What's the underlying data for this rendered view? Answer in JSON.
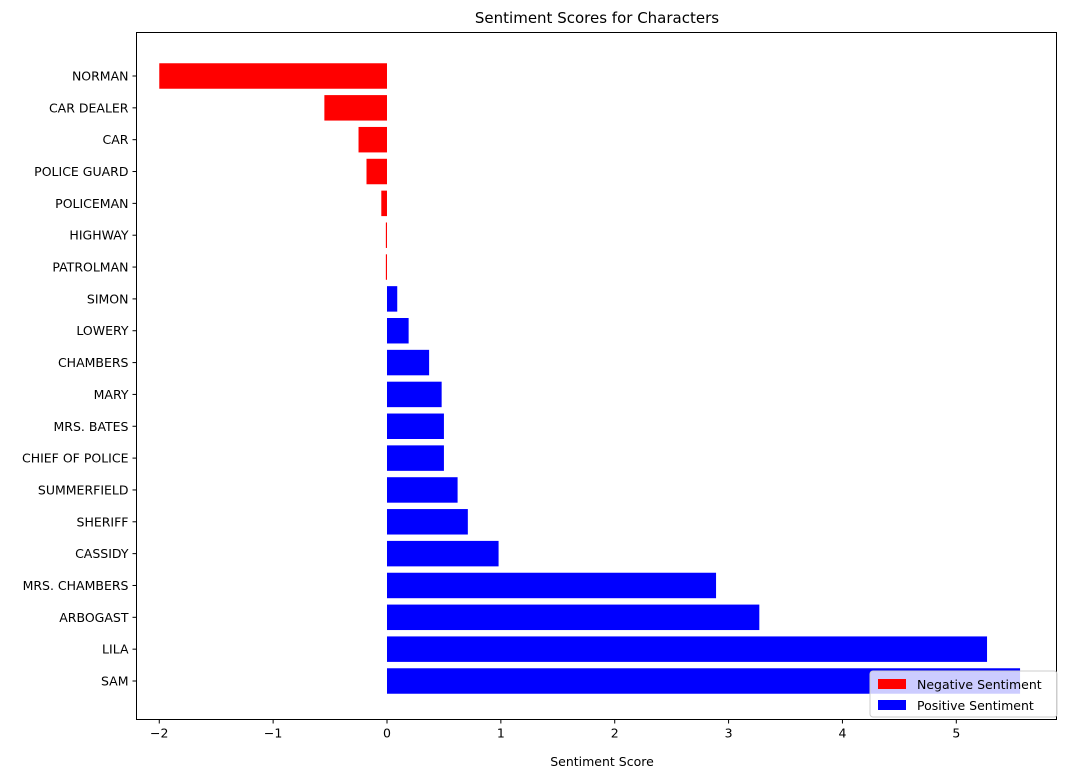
{
  "chart_data": {
    "type": "bar",
    "orientation": "horizontal",
    "title": "Sentiment Scores for Characters",
    "xlabel": "Sentiment Score",
    "ylabel": "",
    "xlim": [
      -2.2,
      5.88
    ],
    "xticks": [
      -2,
      -1,
      0,
      1,
      2,
      3,
      4,
      5
    ],
    "xtick_labels": [
      "−2",
      "−1",
      "0",
      "1",
      "2",
      "3",
      "4",
      "5"
    ],
    "grid": false,
    "legend_position": "bottom-right",
    "categories": [
      "NORMAN",
      "CAR DEALER",
      "CAR",
      "POLICE GUARD",
      "POLICEMAN",
      "HIGHWAY",
      "PATROLMAN",
      "SIMON",
      "LOWERY",
      "CHAMBERS",
      "MARY",
      "MRS. BATES",
      "CHIEF OF POLICE",
      "SUMMERFIELD",
      "SHERIFF",
      "CASSIDY",
      "MRS. CHAMBERS",
      "ARBOGAST",
      "LILA",
      "SAM"
    ],
    "values": [
      -2.0,
      -0.55,
      -0.25,
      -0.18,
      -0.05,
      -0.01,
      -0.01,
      0.09,
      0.19,
      0.37,
      0.48,
      0.5,
      0.5,
      0.62,
      0.71,
      0.98,
      2.89,
      3.27,
      5.27,
      5.56
    ],
    "series": [
      {
        "name": "Negative Sentiment",
        "color": "#ff0000"
      },
      {
        "name": "Positive Sentiment",
        "color": "#0000ff"
      }
    ]
  }
}
